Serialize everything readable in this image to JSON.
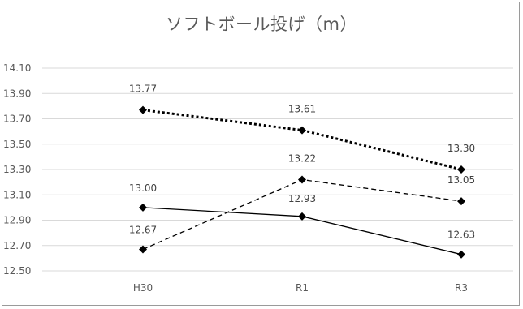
{
  "chart_data": {
    "type": "line",
    "title": "ソフトボール投げ（m）",
    "categories": [
      "H30",
      "R1",
      "R3"
    ],
    "ylim": [
      12.5,
      14.1
    ],
    "yticks": [
      "12.50",
      "12.70",
      "12.90",
      "13.10",
      "13.30",
      "13.50",
      "13.70",
      "13.90",
      "14.10"
    ],
    "grid": true,
    "series": [
      {
        "style": "dotted",
        "values": [
          13.77,
          13.61,
          13.3
        ],
        "labels": [
          "13.77",
          "13.61",
          "13.30"
        ]
      },
      {
        "style": "dashed",
        "values": [
          12.67,
          13.22,
          13.05
        ],
        "labels": [
          "12.67",
          "13.22",
          "13.05"
        ]
      },
      {
        "style": "solid",
        "values": [
          13.0,
          12.93,
          12.63
        ],
        "labels": [
          "13.00",
          "12.93",
          "12.63"
        ]
      }
    ],
    "line_color": "#000000",
    "grid_color": "#d9d9d9"
  }
}
